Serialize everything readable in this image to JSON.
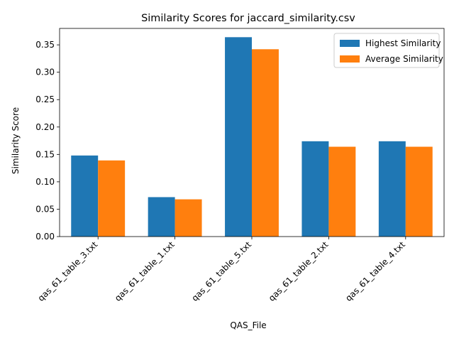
{
  "chart_data": {
    "type": "bar",
    "title": "Similarity Scores for jaccard_similarity.csv",
    "xlabel": "QAS_File",
    "ylabel": "Similarity Score",
    "categories": [
      "qas_61_table_3.txt",
      "qas_61_table_1.txt",
      "qas_61_table_5.txt",
      "qas_61_table_2.txt",
      "qas_61_table_4.txt"
    ],
    "series": [
      {
        "name": "Highest Similarity",
        "color": "#1f77b4",
        "values": [
          0.148,
          0.072,
          0.364,
          0.174,
          0.174
        ]
      },
      {
        "name": "Average Similarity",
        "color": "#ff7f0e",
        "values": [
          0.139,
          0.068,
          0.342,
          0.164,
          0.164
        ]
      }
    ],
    "ylim": [
      0,
      0.38
    ],
    "yticks": [
      "0.00",
      "0.05",
      "0.10",
      "0.15",
      "0.20",
      "0.25",
      "0.30",
      "0.35"
    ],
    "grid": false,
    "legend_position": "top-right"
  }
}
